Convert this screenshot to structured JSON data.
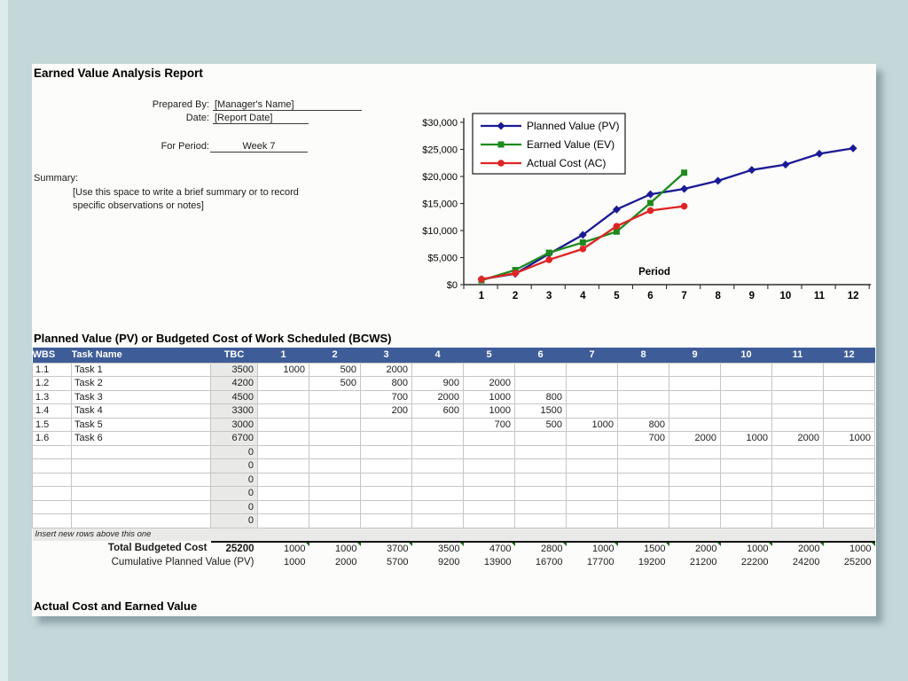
{
  "colors": {
    "desktop_bg": "#c4d7d9",
    "left_strip": "#dcebeb",
    "sheet_bg": "#fcfcfa",
    "table_header_bg": "#3e5c98",
    "table_header_text": "#ffffff",
    "tbc_column_bg": "#e9e9e7",
    "grid_line": "#c6c6c6",
    "total_border": "#141414",
    "comment_indicator": "#156b15",
    "pv_series": "#1a1a96",
    "ev_series": "#1e8a1e",
    "ac_series": "#e02424"
  },
  "report": {
    "title": "Earned Value Analysis Report",
    "prepared_by_label": "Prepared By:",
    "prepared_by_value": "[Manager's Name]",
    "date_label": "Date:",
    "date_value": "[Report Date]",
    "for_period_label": "For Period:",
    "for_period_value": "Week 7",
    "summary_label": "Summary:",
    "summary_note_line1": "[Use this space to write a brief summary or to record",
    "summary_note_line2": "specific observations or notes]"
  },
  "chart_data": {
    "type": "line",
    "title": "",
    "xlabel": "Period",
    "ylabel": "",
    "x": [
      1,
      2,
      3,
      4,
      5,
      6,
      7,
      8,
      9,
      10,
      11,
      12
    ],
    "ylim": [
      0,
      30000
    ],
    "ytick_values": [
      0,
      5000,
      10000,
      15000,
      20000,
      25000,
      30000
    ],
    "ytick_labels": [
      "$0",
      "$5,000",
      "$10,000",
      "$15,000",
      "$20,000",
      "$25,000",
      "$30,000"
    ],
    "grid": false,
    "legend_position": "upper-left-inside",
    "series": [
      {
        "name": "Planned Value (PV)",
        "marker": "diamond",
        "color": "#1a1a96",
        "values": [
          1000,
          2000,
          5700,
          9200,
          13900,
          16700,
          17700,
          19200,
          21200,
          22200,
          24200,
          25200
        ]
      },
      {
        "name": "Earned Value (EV)",
        "marker": "square",
        "color": "#1e8a1e",
        "values": [
          800,
          2700,
          5900,
          7800,
          9800,
          15100,
          20700
        ]
      },
      {
        "name": "Actual Cost (AC)",
        "marker": "circle",
        "color": "#e02424",
        "values": [
          1000,
          2100,
          4600,
          6600,
          10800,
          13700,
          14500
        ]
      }
    ]
  },
  "pv_table": {
    "section_title": "Planned Value (PV) or Budgeted Cost of Work Scheduled (BCWS)",
    "headers": {
      "wbs": "WBS",
      "task": "Task Name",
      "tbc": "TBC",
      "periods": [
        "1",
        "2",
        "3",
        "4",
        "5",
        "6",
        "7",
        "8",
        "9",
        "10",
        "11",
        "12"
      ]
    },
    "rows": [
      {
        "wbs": "1.1",
        "task": "Task 1",
        "tbc": "3500",
        "periods": [
          "1000",
          "500",
          "2000",
          "",
          "",
          "",
          "",
          "",
          "",
          "",
          "",
          ""
        ]
      },
      {
        "wbs": "1.2",
        "task": "Task 2",
        "tbc": "4200",
        "periods": [
          "",
          "500",
          "800",
          "900",
          "2000",
          "",
          "",
          "",
          "",
          "",
          "",
          ""
        ]
      },
      {
        "wbs": "1.3",
        "task": "Task 3",
        "tbc": "4500",
        "periods": [
          "",
          "",
          "700",
          "2000",
          "1000",
          "800",
          "",
          "",
          "",
          "",
          "",
          ""
        ]
      },
      {
        "wbs": "1.4",
        "task": "Task 4",
        "tbc": "3300",
        "periods": [
          "",
          "",
          "200",
          "600",
          "1000",
          "1500",
          "",
          "",
          "",
          "",
          "",
          ""
        ]
      },
      {
        "wbs": "1.5",
        "task": "Task 5",
        "tbc": "3000",
        "periods": [
          "",
          "",
          "",
          "",
          "700",
          "500",
          "1000",
          "800",
          "",
          "",
          "",
          ""
        ]
      },
      {
        "wbs": "1.6",
        "task": "Task 6",
        "tbc": "6700",
        "periods": [
          "",
          "",
          "",
          "",
          "",
          "",
          "",
          "700",
          "2000",
          "1000",
          "2000",
          "1000"
        ]
      },
      {
        "wbs": "",
        "task": "",
        "tbc": "0",
        "periods": [
          "",
          "",
          "",
          "",
          "",
          "",
          "",
          "",
          "",
          "",
          "",
          ""
        ]
      },
      {
        "wbs": "",
        "task": "",
        "tbc": "0",
        "periods": [
          "",
          "",
          "",
          "",
          "",
          "",
          "",
          "",
          "",
          "",
          "",
          ""
        ]
      },
      {
        "wbs": "",
        "task": "",
        "tbc": "0",
        "periods": [
          "",
          "",
          "",
          "",
          "",
          "",
          "",
          "",
          "",
          "",
          "",
          ""
        ]
      },
      {
        "wbs": "",
        "task": "",
        "tbc": "0",
        "periods": [
          "",
          "",
          "",
          "",
          "",
          "",
          "",
          "",
          "",
          "",
          "",
          ""
        ]
      },
      {
        "wbs": "",
        "task": "",
        "tbc": "0",
        "periods": [
          "",
          "",
          "",
          "",
          "",
          "",
          "",
          "",
          "",
          "",
          "",
          ""
        ]
      },
      {
        "wbs": "",
        "task": "",
        "tbc": "0",
        "periods": [
          "",
          "",
          "",
          "",
          "",
          "",
          "",
          "",
          "",
          "",
          "",
          ""
        ]
      }
    ],
    "insert_note": "Insert new rows above this one",
    "total_label": "Total Budgeted Cost",
    "total_tbc": "25200",
    "total_periods": [
      "1000",
      "1000",
      "3700",
      "3500",
      "4700",
      "2800",
      "1000",
      "1500",
      "2000",
      "1000",
      "2000",
      "1000"
    ],
    "cumulative_label": "Cumulative Planned Value (PV)",
    "cumulative_periods": [
      "1000",
      "2000",
      "5700",
      "9200",
      "13900",
      "16700",
      "17700",
      "19200",
      "21200",
      "22200",
      "24200",
      "25200"
    ]
  },
  "bottom_heading": "Actual Cost and Earned Value"
}
